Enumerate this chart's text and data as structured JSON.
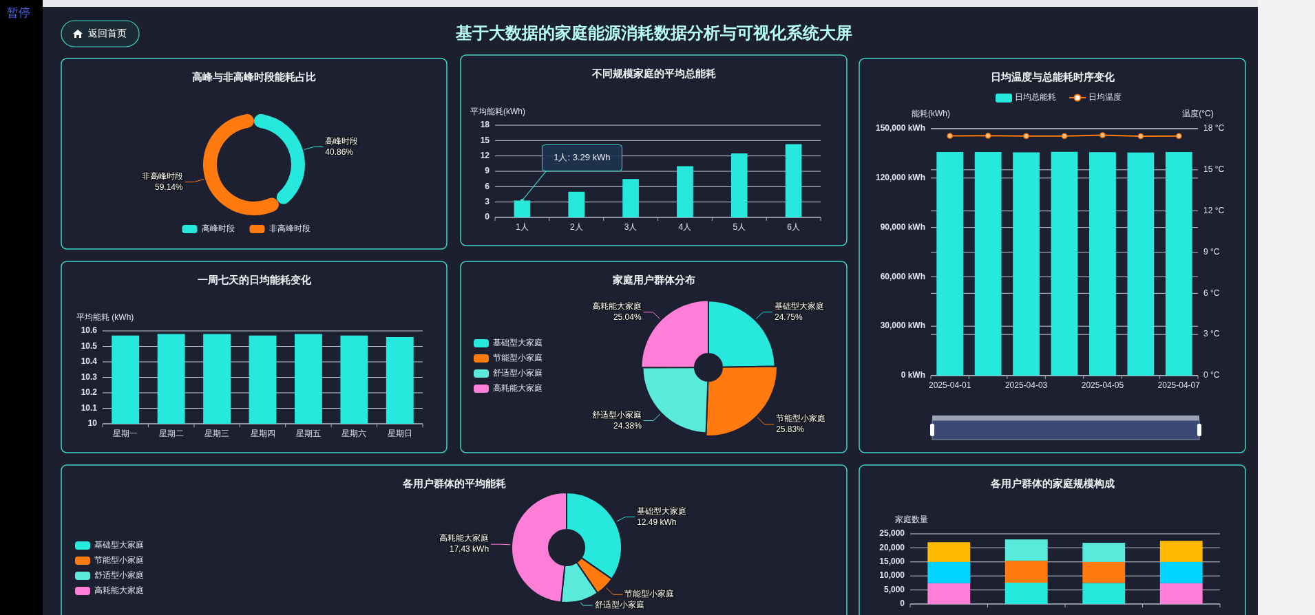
{
  "chart_data": [
    {
      "type": "other",
      "title": "基于大数据的家庭能源消耗数据分析与可视化系统大屏",
      "annotations": [
        "返回首页",
        "暂停"
      ]
    },
    {
      "type": "donut",
      "title": "高峰与非高峰时段能耗占比",
      "categories": [
        "高峰时段",
        "非高峰时段"
      ],
      "values": [
        40.86,
        59.14
      ],
      "colors": [
        "#27e8dd",
        "#ff7a0f"
      ],
      "value_labels": [
        "40.86%",
        "59.14%"
      ],
      "legend": "bottom"
    },
    {
      "type": "bar",
      "title": "不同规模家庭的平均总能耗",
      "ylabel": "平均能耗(kWh)",
      "categories": [
        "1人",
        "2人",
        "3人",
        "4人",
        "5人",
        "6人"
      ],
      "series": [
        {
          "color": "#27e8dd",
          "values": [
            3.29,
            5.0,
            7.5,
            10.0,
            12.5,
            14.3
          ]
        }
      ],
      "ylim": [
        0,
        18
      ],
      "yticks": [
        0,
        3,
        6,
        9,
        12,
        15,
        18
      ],
      "grid": "y",
      "annotations": [
        {
          "text": "1人: 3.29 kWh",
          "x": "1人",
          "y": 3.29
        }
      ]
    },
    {
      "type": "bar",
      "title": "日均温度与总能耗时序变化",
      "ylabel": "能耗(kWh)",
      "y2label": "温度(°C)",
      "categories": [
        "2025-04-01",
        null,
        "2025-04-03",
        null,
        "2025-04-05",
        null,
        "2025-04-07"
      ],
      "series": [
        {
          "name": "日均总能耗",
          "type": "bar",
          "color": "#27e8dd",
          "values": [
            135800,
            135800,
            135600,
            135900,
            135700,
            135500,
            135800
          ]
        },
        {
          "name": "日均温度",
          "type": "line",
          "axis": "y2",
          "color": "#ff7a0f",
          "values": [
            17.47,
            17.48,
            17.46,
            17.46,
            17.52,
            17.45,
            17.46
          ]
        }
      ],
      "ylim": [
        0,
        150000
      ],
      "yticks": [
        {
          "value": 0,
          "label": "0 kWh"
        },
        {
          "value": 30000,
          "label": "30,000 kWh"
        },
        {
          "value": 60000,
          "label": "60,000 kWh"
        },
        {
          "value": 90000,
          "label": "90,000 kWh"
        },
        {
          "value": 120000,
          "label": "120,000 kWh"
        },
        {
          "value": 150000,
          "label": "150,000 kWh"
        }
      ],
      "y2lim": [
        0,
        18
      ],
      "y2ticks": [
        {
          "value": 0,
          "label": "0 °C"
        },
        {
          "value": 3,
          "label": "3 °C"
        },
        {
          "value": 6,
          "label": "6 °C"
        },
        {
          "value": 9,
          "label": "9 °C"
        },
        {
          "value": 12,
          "label": "12 °C"
        },
        {
          "value": 15,
          "label": "15 °C"
        },
        {
          "value": 18,
          "label": "18 °C"
        }
      ],
      "grid": true,
      "legend": "top",
      "marker": "circle"
    },
    {
      "type": "bar",
      "title": "一周七天的日均能耗变化",
      "ylabel": "平均能耗 (kWh)",
      "categories": [
        "星期一",
        "星期二",
        "星期三",
        "星期四",
        "星期五",
        "星期六",
        "星期日"
      ],
      "series": [
        {
          "color": "#27e8dd",
          "values": [
            10.57,
            10.58,
            10.58,
            10.57,
            10.58,
            10.57,
            10.56
          ]
        }
      ],
      "ylim": [
        10,
        10.6
      ],
      "yticks": [
        10,
        10.1,
        10.2,
        10.3,
        10.4,
        10.5,
        10.6
      ],
      "grid": "y"
    },
    {
      "type": "donut",
      "title": "家庭用户群体分布",
      "categories": [
        "基础型大家庭",
        "节能型小家庭",
        "舒适型小家庭",
        "高耗能大家庭"
      ],
      "values": [
        24.75,
        25.83,
        24.38,
        25.04
      ],
      "colors": [
        "#27e8dd",
        "#ff7a0f",
        "#5aeadb",
        "#ff7fd8"
      ],
      "value_labels": [
        "24.75%",
        "25.83%",
        "24.38%",
        "25.04%"
      ],
      "legend": "left"
    },
    {
      "type": "donut",
      "title": "各用户群体的平均能耗",
      "categories": [
        "基础型大家庭",
        "节能型小家庭",
        "舒适型小家庭",
        "高耗能大家庭"
      ],
      "values": [
        12.49,
        2.1,
        4.0,
        17.43
      ],
      "colors": [
        "#27e8dd",
        "#ff7a0f",
        "#5aeadb",
        "#ff7fd8"
      ],
      "value_labels": [
        "12.49 kWh",
        null,
        null,
        "17.43 kWh"
      ],
      "legend": "left"
    },
    {
      "type": "bar",
      "title": "各用户群体的家庭规模构成",
      "ylabel": "家庭数量",
      "categories": [
        null,
        null,
        null,
        null
      ],
      "stacked": true,
      "series": [
        {
          "color": "#ff7fd8",
          "values": [
            7400,
            null,
            null,
            7400
          ]
        },
        {
          "color": "#27e8dd",
          "values": [
            null,
            7600,
            7500,
            null
          ]
        },
        {
          "color": "#00d4ff",
          "values": [
            7600,
            null,
            null,
            7600
          ]
        },
        {
          "color": "#ff7a0f",
          "values": [
            null,
            7800,
            7500,
            null
          ]
        },
        {
          "color": "#ffba00",
          "values": [
            7000,
            null,
            null,
            7500
          ]
        },
        {
          "color": "#5aeadb",
          "values": [
            null,
            7600,
            6800,
            null
          ]
        }
      ],
      "ylim": [
        0,
        25000
      ],
      "yticks": [
        0,
        {
          "value": 5000,
          "label": "5,000"
        },
        {
          "value": 10000,
          "label": "10,000"
        },
        {
          "value": 15000,
          "label": "15,000"
        },
        {
          "value": 20000,
          "label": "20,000"
        },
        {
          "value": 25000,
          "label": "25,000"
        }
      ],
      "grid": "y"
    }
  ]
}
